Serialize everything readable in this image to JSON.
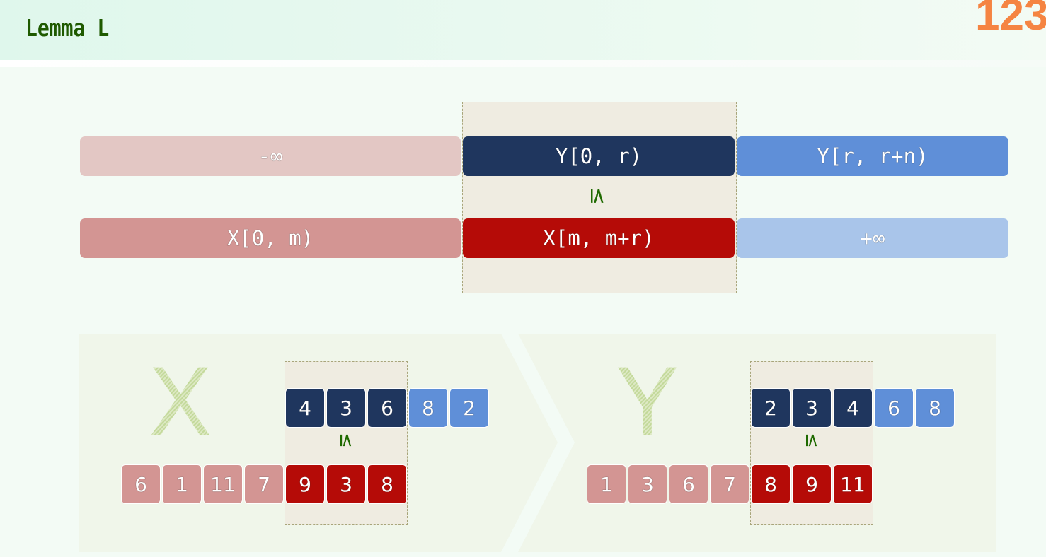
{
  "header": {
    "title": "Lemma L",
    "page_number": "123"
  },
  "top": {
    "row_y": [
      {
        "label": "-∞",
        "color": "#e3c7c4"
      },
      {
        "label": "Y[0, r)",
        "color": "#1f365e"
      },
      {
        "label": "Y[r, r+n)",
        "color": "#5f8fd8"
      }
    ],
    "relation": "≤",
    "row_x": [
      {
        "label": "X[0, m)",
        "color": "#d39593"
      },
      {
        "label": "X[m, m+r)",
        "color": "#b50b07"
      },
      {
        "label": "+∞",
        "color": "#a9c5ea"
      }
    ]
  },
  "examples": [
    {
      "letter": "X",
      "top": [
        "4",
        "3",
        "6",
        "8",
        "2"
      ],
      "bottom": [
        "6",
        "1",
        "11",
        "7",
        "9",
        "3",
        "8"
      ],
      "relation": "≤"
    },
    {
      "letter": "Y",
      "top": [
        "2",
        "3",
        "4",
        "6",
        "8"
      ],
      "bottom": [
        "1",
        "3",
        "6",
        "7",
        "8",
        "9",
        "11"
      ],
      "relation": "≤"
    }
  ],
  "colors": {
    "dark_blue": "#1f365e",
    "light_blue": "#5f8fd8",
    "dark_red": "#b50b07",
    "light_red": "#d39593",
    "relation": "#1f6a00"
  }
}
